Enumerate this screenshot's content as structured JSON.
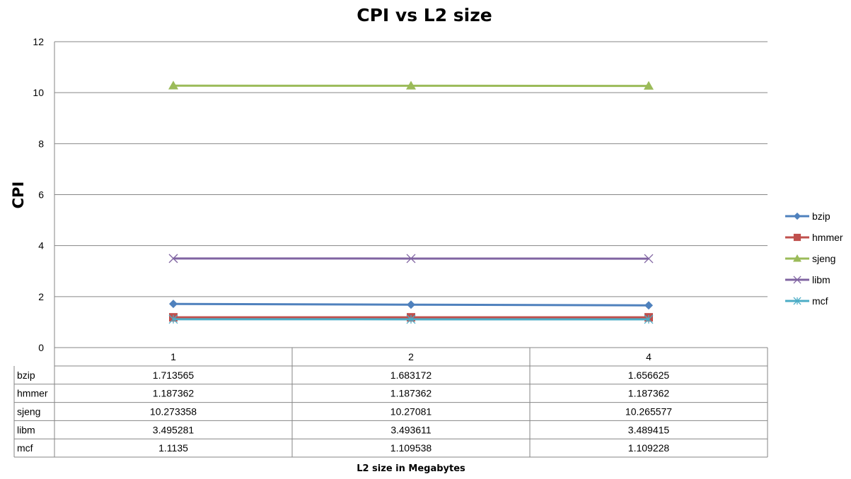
{
  "chart_data": {
    "type": "line",
    "title": "CPI vs L2 size",
    "xlabel": "L2 size in Megabytes",
    "ylabel": "CPI",
    "categories": [
      "1",
      "2",
      "4"
    ],
    "ylim": [
      0,
      12
    ],
    "yticks": [
      "0",
      "2",
      "4",
      "6",
      "8",
      "10",
      "12"
    ],
    "grid": true,
    "legend_position": "right",
    "series": [
      {
        "name": "bzip",
        "values": [
          1.713565,
          1.683172,
          1.656625
        ],
        "labels": [
          "1.713565",
          "1.683172",
          "1.656625"
        ],
        "color": "#4F81BD",
        "marker": "diamond"
      },
      {
        "name": "hmmer",
        "values": [
          1.187362,
          1.187362,
          1.187362
        ],
        "labels": [
          "1.187362",
          "1.187362",
          "1.187362"
        ],
        "color": "#C0504D",
        "marker": "square"
      },
      {
        "name": "sjeng",
        "values": [
          10.273358,
          10.27081,
          10.265577
        ],
        "labels": [
          "10.273358",
          "10.27081",
          "10.265577"
        ],
        "color": "#9BBB59",
        "marker": "triangle"
      },
      {
        "name": "libm",
        "values": [
          3.495281,
          3.493611,
          3.489415
        ],
        "labels": [
          "3.495281",
          "3.493611",
          "3.489415"
        ],
        "color": "#8064A2",
        "marker": "x"
      },
      {
        "name": "mcf",
        "values": [
          1.1135,
          1.109538,
          1.109228
        ],
        "labels": [
          "1.1135",
          "1.109538",
          "1.109228"
        ],
        "color": "#4BACC6",
        "marker": "star"
      }
    ]
  }
}
